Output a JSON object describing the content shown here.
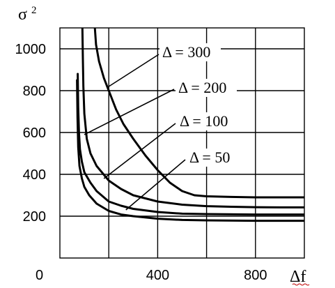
{
  "chart_data": {
    "type": "line",
    "ylabel": "σ",
    "ylabel_superscript": "2",
    "xlabel": "Δf",
    "origin_label": "0",
    "xlim": [
      0,
      1000
    ],
    "ylim": [
      0,
      1100
    ],
    "grid": true,
    "x_ticks": [
      {
        "value": 400,
        "label": "400"
      },
      {
        "value": 800,
        "label": "800"
      }
    ],
    "x_grid_values": [
      200,
      400,
      600,
      800,
      1000
    ],
    "y_ticks": [
      {
        "value": 200,
        "label": "200"
      },
      {
        "value": 400,
        "label": "400"
      },
      {
        "value": 600,
        "label": "600"
      },
      {
        "value": 800,
        "label": "800"
      },
      {
        "value": 1000,
        "label": "1000"
      }
    ],
    "series": [
      {
        "name": "Δ = 300",
        "label_point": {
          "x": 200,
          "y": 820
        },
        "x": [
          143,
          148,
          160,
          180,
          200,
          230,
          260,
          300,
          350,
          400,
          450,
          500,
          550,
          600,
          700,
          800,
          900,
          1000
        ],
        "y": [
          1100,
          1020,
          940,
          860,
          800,
          710,
          640,
          570,
          490,
          420,
          360,
          320,
          300,
          295,
          292,
          290,
          290,
          290
        ]
      },
      {
        "name": "Δ = 200",
        "label_point": {
          "x": 100,
          "y": 590
        },
        "x": [
          92,
          94,
          96,
          100,
          110,
          125,
          150,
          200,
          250,
          300,
          400,
          500,
          600,
          700,
          800,
          900,
          1000
        ],
        "y": [
          1100,
          950,
          820,
          690,
          570,
          500,
          440,
          370,
          330,
          300,
          270,
          255,
          248,
          245,
          243,
          242,
          242
        ]
      },
      {
        "name": "Δ = 100",
        "label_point": {
          "x": 180,
          "y": 380
        },
        "x": [
          73,
          75,
          78,
          82,
          90,
          100,
          125,
          150,
          200,
          250,
          300,
          400,
          500,
          600,
          800,
          1000
        ],
        "y": [
          880,
          720,
          600,
          520,
          460,
          410,
          360,
          320,
          270,
          250,
          235,
          220,
          212,
          210,
          208,
          208
        ]
      },
      {
        "name": "Δ = 50",
        "label_point": {
          "x": 270,
          "y": 230
        },
        "x": [
          70,
          72,
          75,
          80,
          90,
          100,
          120,
          150,
          200,
          250,
          300,
          400,
          500,
          600,
          800,
          1000
        ],
        "y": [
          850,
          670,
          530,
          440,
          380,
          340,
          300,
          260,
          225,
          208,
          200,
          188,
          182,
          180,
          178,
          178
        ]
      }
    ],
    "annotations": [
      {
        "series": "Δ = 300",
        "text": "Δ = 300"
      },
      {
        "series": "Δ = 200",
        "text": "Δ = 200"
      },
      {
        "series": "Δ = 100",
        "text": "Δ = 100"
      },
      {
        "series": "Δ = 50",
        "text": "Δ = 50"
      }
    ]
  }
}
